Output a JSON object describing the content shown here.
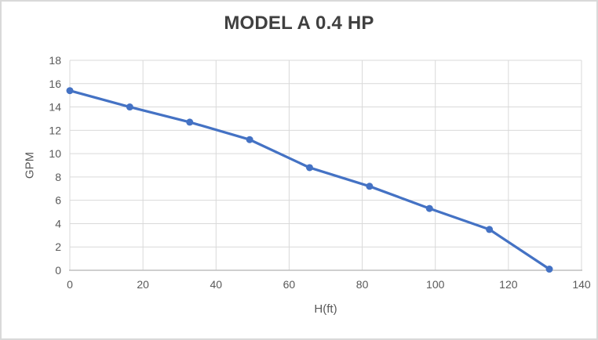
{
  "chart_data": {
    "type": "line",
    "title": "MODEL A 0.4 HP",
    "xlabel": "H(ft)",
    "ylabel": "GPM",
    "series": [
      {
        "name": "MODEL A 0.4 HP",
        "x": [
          0,
          16.4,
          32.8,
          49.2,
          65.6,
          82,
          98.4,
          114.8,
          131.2
        ],
        "y": [
          15.4,
          14.0,
          12.7,
          11.2,
          8.8,
          7.2,
          5.3,
          3.5,
          0.1
        ]
      }
    ],
    "xlim": [
      0,
      140
    ],
    "ylim": [
      0,
      18
    ],
    "x_tick_step": 20,
    "y_tick_step": 2,
    "grid": true,
    "legend_position": "none",
    "marker": "circle",
    "colors": {
      "line": "#4472C4",
      "marker": "#4472C4",
      "gridline": "#D9D9D9",
      "axis_line": "#BFBFBF",
      "tick_label": "#595959",
      "axis_title": "#595959",
      "title": "#404040",
      "background": "#ffffff",
      "frame_border": "#D9D9D9"
    }
  }
}
